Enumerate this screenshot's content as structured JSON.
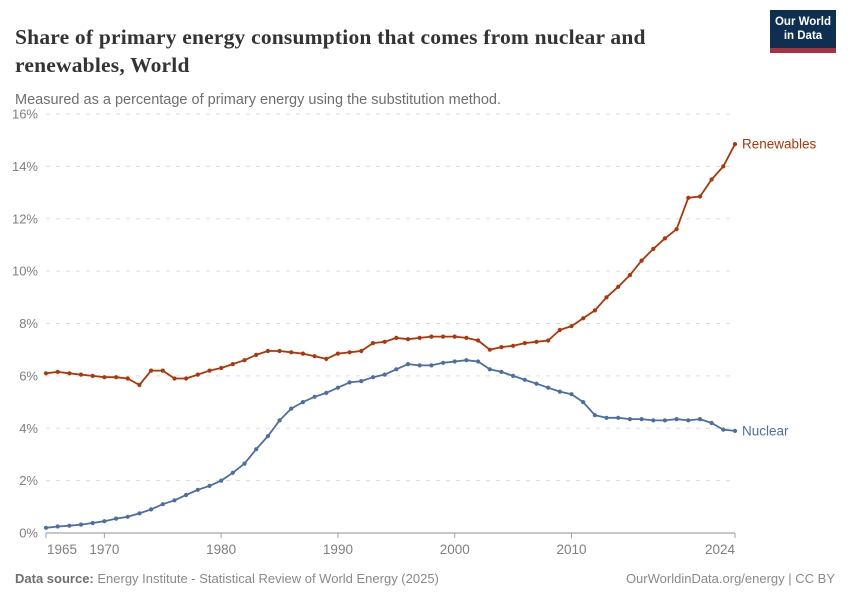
{
  "header": {
    "title": "Share of primary energy consumption that comes from nuclear and renewables, World",
    "subtitle": "Measured as a percentage of primary energy using the substitution method.",
    "logo": {
      "line1": "Our World",
      "line2": "in Data",
      "bg_color": "#0e2f52",
      "accent_color": "#a8323e"
    }
  },
  "footer": {
    "source_label": "Data source:",
    "source_text": " Energy Institute - Statistical Review of World Energy (2025)",
    "rights_text": "OurWorldinData.org/energy | CC BY"
  },
  "chart_data": {
    "type": "line",
    "title": "Share of primary energy consumption that comes from nuclear and renewables, World",
    "xlabel": "",
    "ylabel": "",
    "xlim": [
      1965,
      2024
    ],
    "ylim": [
      0,
      16
    ],
    "grid": true,
    "legend_position": "line-end-labels",
    "yticks": [
      0,
      2,
      4,
      6,
      8,
      10,
      12,
      14,
      16
    ],
    "ytick_labels": [
      "0%",
      "2%",
      "4%",
      "6%",
      "8%",
      "10%",
      "12%",
      "14%",
      "16%"
    ],
    "xticks": [
      1965,
      1970,
      1980,
      1990,
      2000,
      2010,
      2024
    ],
    "xtick_labels": [
      "1965",
      "1970",
      "1980",
      "1990",
      "2000",
      "2010",
      "2024"
    ],
    "x": [
      1965,
      1966,
      1967,
      1968,
      1969,
      1970,
      1971,
      1972,
      1973,
      1974,
      1975,
      1976,
      1977,
      1978,
      1979,
      1980,
      1981,
      1982,
      1983,
      1984,
      1985,
      1986,
      1987,
      1988,
      1989,
      1990,
      1991,
      1992,
      1993,
      1994,
      1995,
      1996,
      1997,
      1998,
      1999,
      2000,
      2001,
      2002,
      2003,
      2004,
      2005,
      2006,
      2007,
      2008,
      2009,
      2010,
      2011,
      2012,
      2013,
      2014,
      2015,
      2016,
      2017,
      2018,
      2019,
      2020,
      2021,
      2022,
      2023,
      2024
    ],
    "series": [
      {
        "name": "Renewables",
        "color": "#b13507",
        "values": [
          6.1,
          6.15,
          6.1,
          6.05,
          6.0,
          5.95,
          5.95,
          5.9,
          5.65,
          6.2,
          6.2,
          5.9,
          5.9,
          6.05,
          6.2,
          6.3,
          6.45,
          6.6,
          6.8,
          6.95,
          6.95,
          6.9,
          6.85,
          6.75,
          6.65,
          6.85,
          6.9,
          6.95,
          7.25,
          7.3,
          7.45,
          7.4,
          7.45,
          7.5,
          7.5,
          7.5,
          7.45,
          7.35,
          7.0,
          7.1,
          7.15,
          7.25,
          7.3,
          7.35,
          7.75,
          7.9,
          8.2,
          8.5,
          9.0,
          9.4,
          9.85,
          10.4,
          10.85,
          11.25,
          11.6,
          12.8,
          12.85,
          13.5,
          14.0,
          14.85
        ]
      },
      {
        "name": "Nuclear",
        "color": "#4c6da6",
        "values": [
          0.2,
          0.25,
          0.28,
          0.32,
          0.38,
          0.45,
          0.55,
          0.62,
          0.75,
          0.9,
          1.1,
          1.25,
          1.45,
          1.65,
          1.8,
          2.0,
          2.3,
          2.65,
          3.2,
          3.7,
          4.3,
          4.75,
          5.0,
          5.2,
          5.35,
          5.55,
          5.75,
          5.8,
          5.95,
          6.05,
          6.25,
          6.45,
          6.4,
          6.4,
          6.5,
          6.55,
          6.6,
          6.55,
          6.25,
          6.15,
          6.0,
          5.85,
          5.7,
          5.55,
          5.4,
          5.3,
          5.0,
          4.5,
          4.4,
          4.4,
          4.35,
          4.35,
          4.3,
          4.3,
          4.35,
          4.3,
          4.35,
          4.2,
          3.95,
          3.9
        ]
      }
    ]
  }
}
